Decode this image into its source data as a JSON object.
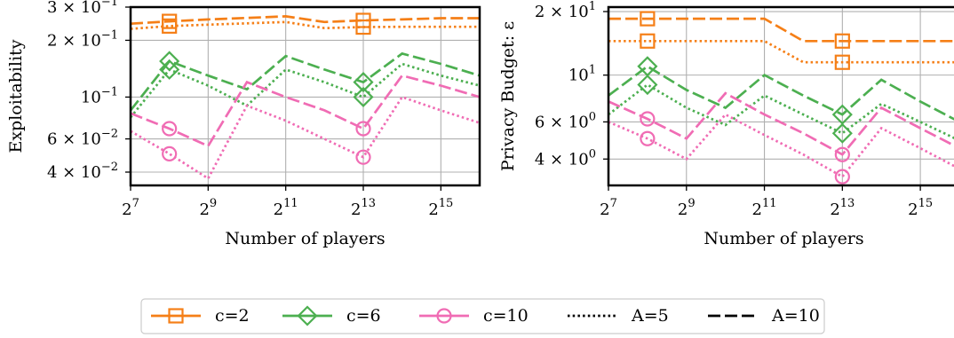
{
  "chart_data": [
    {
      "type": "line",
      "ylabel": "Exploitability",
      "xlabel": "Number of players",
      "x": [
        128,
        256,
        512,
        1024,
        2048,
        4096,
        8192,
        16384,
        32768,
        65536
      ],
      "x_scale": "log2",
      "y_scale": "log",
      "xlim": [
        128,
        65536
      ],
      "ylim": [
        0.034,
        0.3
      ],
      "grid": true,
      "xticks": [
        {
          "value": 128,
          "base": "2",
          "exp": "7"
        },
        {
          "value": 512,
          "base": "2",
          "exp": "9"
        },
        {
          "value": 2048,
          "base": "2",
          "exp": "11"
        },
        {
          "value": 8192,
          "base": "2",
          "exp": "13"
        },
        {
          "value": 32768,
          "base": "2",
          "exp": "15"
        }
      ],
      "yticks": [
        {
          "value": 0.3,
          "mant": "3 × 10",
          "exp": "−1"
        },
        {
          "value": 0.2,
          "mant": "2 × 10",
          "exp": "−1"
        },
        {
          "value": 0.1,
          "mant": "10",
          "exp": "−1"
        },
        {
          "value": 0.06,
          "mant": "6 × 10",
          "exp": "−2"
        },
        {
          "value": 0.04,
          "mant": "4 × 10",
          "exp": "−2"
        }
      ],
      "series": [
        {
          "name": "c=2, A=10",
          "c": "c=2",
          "a": "A=10",
          "values": [
            0.245,
            0.252,
            0.258,
            0.263,
            0.268,
            0.25,
            0.255,
            0.258,
            0.262,
            0.262
          ]
        },
        {
          "name": "c=2, A=5",
          "c": "c=2",
          "a": "A=5",
          "values": [
            0.23,
            0.238,
            0.242,
            0.246,
            0.25,
            0.232,
            0.235,
            0.236,
            0.236,
            0.236
          ]
        },
        {
          "name": "c=6, A=10",
          "c": "c=6",
          "a": "A=10",
          "values": [
            0.085,
            0.155,
            0.13,
            0.11,
            0.165,
            0.14,
            0.12,
            0.17,
            0.15,
            0.13
          ]
        },
        {
          "name": "c=6, A=5",
          "c": "c=6",
          "a": "A=5",
          "values": [
            0.078,
            0.14,
            0.115,
            0.09,
            0.14,
            0.12,
            0.1,
            0.15,
            0.13,
            0.115
          ]
        },
        {
          "name": "c=10, A=10",
          "c": "c=10",
          "a": "A=10",
          "values": [
            0.082,
            0.068,
            0.055,
            0.12,
            0.1,
            0.085,
            0.068,
            0.13,
            0.115,
            0.1
          ]
        },
        {
          "name": "c=10, A=5",
          "c": "c=10",
          "a": "A=5",
          "values": [
            0.066,
            0.05,
            0.037,
            0.09,
            0.075,
            0.06,
            0.048,
            0.1,
            0.085,
            0.073
          ]
        }
      ]
    },
    {
      "type": "line",
      "ylabel": "Privacy Budget: ε",
      "xlabel": "Number of players",
      "x": [
        128,
        256,
        512,
        1024,
        2048,
        4096,
        8192,
        16384,
        32768,
        65536
      ],
      "x_scale": "log2",
      "y_scale": "log",
      "xlim": [
        128,
        65536
      ],
      "ylim": [
        3.0,
        21.0
      ],
      "grid": true,
      "xticks": [
        {
          "value": 128,
          "base": "2",
          "exp": "7"
        },
        {
          "value": 512,
          "base": "2",
          "exp": "9"
        },
        {
          "value": 2048,
          "base": "2",
          "exp": "11"
        },
        {
          "value": 8192,
          "base": "2",
          "exp": "13"
        },
        {
          "value": 32768,
          "base": "2",
          "exp": "15"
        }
      ],
      "yticks": [
        {
          "value": 20,
          "mant": "2 × 10",
          "exp": "1"
        },
        {
          "value": 10,
          "mant": "10",
          "exp": "1"
        },
        {
          "value": 6,
          "mant": "6 × 10",
          "exp": "0"
        },
        {
          "value": 4,
          "mant": "4 × 10",
          "exp": "0"
        }
      ],
      "series": [
        {
          "name": "c=2, A=10",
          "c": "c=2",
          "a": "A=10",
          "values": [
            18.5,
            18.5,
            18.5,
            18.5,
            18.5,
            14.5,
            14.5,
            14.5,
            14.5,
            14.5
          ]
        },
        {
          "name": "c=2, A=5",
          "c": "c=2",
          "a": "A=5",
          "values": [
            14.5,
            14.5,
            14.5,
            14.5,
            14.5,
            11.5,
            11.5,
            11.5,
            11.5,
            11.5
          ]
        },
        {
          "name": "c=6, A=10",
          "c": "c=6",
          "a": "A=10",
          "values": [
            8.0,
            11.0,
            8.5,
            7.0,
            10.0,
            8.0,
            6.5,
            9.5,
            7.5,
            6.0
          ]
        },
        {
          "name": "c=6, A=5",
          "c": "c=6",
          "a": "A=5",
          "values": [
            6.5,
            9.0,
            7.0,
            5.8,
            8.0,
            6.5,
            5.3,
            7.3,
            6.0,
            4.9
          ]
        },
        {
          "name": "c=10, A=10",
          "c": "c=10",
          "a": "A=10",
          "values": [
            7.5,
            6.2,
            5.0,
            8.2,
            6.5,
            5.3,
            4.2,
            7.0,
            5.6,
            4.5
          ]
        },
        {
          "name": "c=10, A=5",
          "c": "c=10",
          "a": "A=5",
          "values": [
            6.0,
            5.0,
            4.0,
            6.5,
            5.2,
            4.2,
            3.3,
            5.6,
            4.5,
            3.6
          ]
        }
      ]
    }
  ],
  "colors": {
    "c=2": "#f57f17",
    "c=6": "#4caf50",
    "c=10": "#f06cb4"
  },
  "markers": {
    "c=2": "square",
    "c=6": "diamond",
    "c=10": "circle"
  },
  "marker_at_x": [
    256,
    8192
  ],
  "legend": {
    "placement": "bottom-center",
    "items": [
      {
        "label": "c=2",
        "kind": "color",
        "key": "c=2"
      },
      {
        "label": "c=6",
        "kind": "color",
        "key": "c=6"
      },
      {
        "label": "c=10",
        "kind": "color",
        "key": "c=10"
      },
      {
        "label": "A=5",
        "kind": "style",
        "dash": "dotted"
      },
      {
        "label": "A=10",
        "kind": "style",
        "dash": "dashed"
      }
    ]
  }
}
